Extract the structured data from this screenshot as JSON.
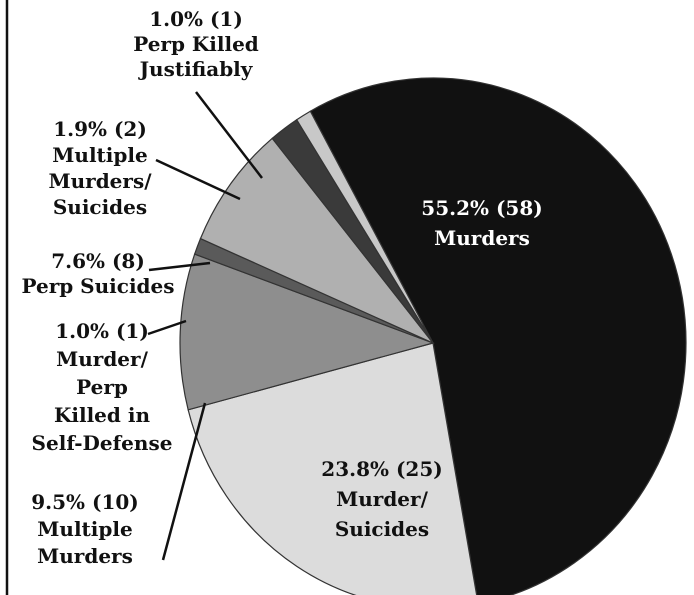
{
  "chart_data": {
    "type": "pie",
    "title": "",
    "slices": [
      {
        "value": 55.2,
        "count": 58,
        "pct_label": "55.2% (58)",
        "label_lines": [
          "Murders"
        ],
        "color": "#111111"
      },
      {
        "value": 23.8,
        "count": 25,
        "pct_label": "23.8% (25)",
        "label_lines": [
          "Murder/",
          "Suicides"
        ],
        "color": "#dcdcdc"
      },
      {
        "value": 9.5,
        "count": 10,
        "pct_label": "9.5% (10)",
        "label_lines": [
          "Multiple",
          "Murders"
        ],
        "color": "#8e8e8e"
      },
      {
        "value": 1.0,
        "count": 1,
        "pct_label": "1.0% (1)",
        "label_lines": [
          "Murder/",
          "Perp",
          "Killed in",
          "Self-Defense"
        ],
        "color": "#5a5a5a"
      },
      {
        "value": 7.6,
        "count": 8,
        "pct_label": "7.6% (8)",
        "label_lines": [
          "Perp Suicides"
        ],
        "color": "#b0b0b0"
      },
      {
        "value": 1.9,
        "count": 2,
        "pct_label": "1.9% (2)",
        "label_lines": [
          "Multiple",
          "Murders/",
          "Suicides"
        ],
        "color": "#3a3a3a"
      },
      {
        "value": 1.0,
        "count": 1,
        "pct_label": "1.0% (1)",
        "label_lines": [
          "Perp Killed",
          "Justifiably"
        ],
        "color": "#c8c8c8"
      }
    ]
  }
}
